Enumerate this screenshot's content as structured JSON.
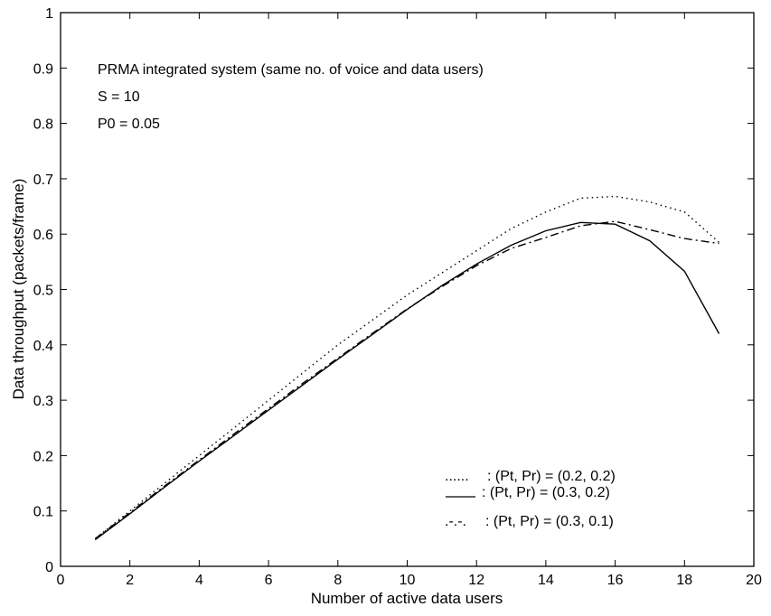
{
  "chart_data": {
    "type": "line",
    "xlabel": "Number of active data users",
    "ylabel": "Data throughput (packets/frame)",
    "xlim": [
      0,
      20
    ],
    "ylim": [
      0,
      1
    ],
    "xticks": [
      "0",
      "2",
      "4",
      "6",
      "8",
      "10",
      "12",
      "14",
      "16",
      "18",
      "20"
    ],
    "yticks": [
      "0",
      "0.1",
      "0.2",
      "0.3",
      "0.4",
      "0.5",
      "0.6",
      "0.7",
      "0.8",
      "0.9",
      "1"
    ],
    "grid": false,
    "legend_position": "bottom-right",
    "annotations": [
      "PRMA integrated system (same no. of voice and data users)",
      "S = 10",
      "P0 = 0.05"
    ],
    "series": [
      {
        "name": ": (Pt, Pr) = (0.2, 0.2)",
        "legend_marker": "......",
        "line_style": "dotted",
        "x": [
          1,
          2,
          3,
          4,
          5,
          6,
          7,
          8,
          9,
          10,
          11,
          12,
          13,
          14,
          15,
          16,
          17,
          18,
          19
        ],
        "y": [
          0.05,
          0.1,
          0.15,
          0.2,
          0.25,
          0.3,
          0.35,
          0.4,
          0.445,
          0.49,
          0.53,
          0.57,
          0.61,
          0.64,
          0.665,
          0.668,
          0.658,
          0.64,
          0.585
        ]
      },
      {
        "name": ": (Pt, Pr) = (0.3, 0.2)",
        "legend_marker": "",
        "line_style": "solid",
        "x": [
          1,
          2,
          3,
          4,
          5,
          6,
          7,
          8,
          9,
          10,
          11,
          12,
          13,
          14,
          15,
          16,
          17,
          18,
          19
        ],
        "y": [
          0.048,
          0.095,
          0.143,
          0.19,
          0.236,
          0.282,
          0.328,
          0.374,
          0.419,
          0.464,
          0.507,
          0.546,
          0.58,
          0.606,
          0.621,
          0.618,
          0.588,
          0.533,
          0.42
        ]
      },
      {
        "name": ": (Pt, Pr) = (0.3, 0.1)",
        "legend_marker": ".-.-.",
        "line_style": "dashdot",
        "x": [
          1,
          2,
          3,
          4,
          5,
          6,
          7,
          8,
          9,
          10,
          11,
          12,
          13,
          14,
          15,
          16,
          17,
          18,
          19
        ],
        "y": [
          0.05,
          0.097,
          0.145,
          0.192,
          0.239,
          0.285,
          0.331,
          0.376,
          0.421,
          0.465,
          0.505,
          0.543,
          0.574,
          0.594,
          0.615,
          0.623,
          0.608,
          0.592,
          0.583
        ]
      }
    ]
  }
}
